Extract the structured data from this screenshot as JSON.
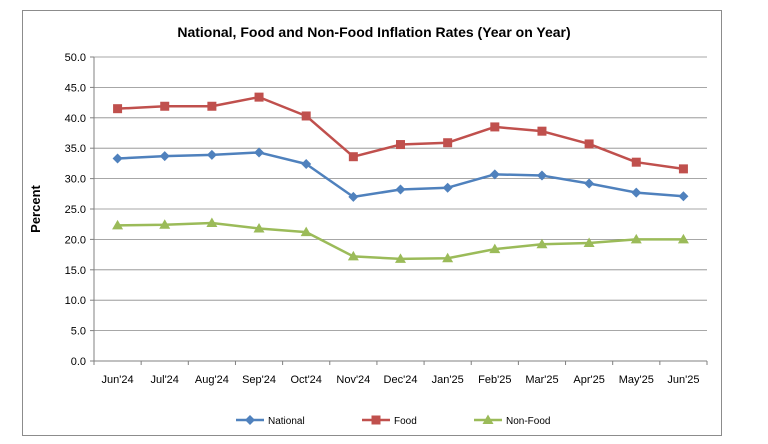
{
  "chart_data": {
    "type": "line",
    "title": "National, Food and Non-Food Inflation Rates (Year on Year)",
    "xlabel": "",
    "ylabel": "Percent",
    "ylim": [
      0,
      50
    ],
    "yticks": [
      "0.0",
      "5.0",
      "10.0",
      "15.0",
      "20.0",
      "25.0",
      "30.0",
      "35.0",
      "40.0",
      "45.0",
      "50.0"
    ],
    "categories": [
      "Jun'24",
      "Jul'24",
      "Aug'24",
      "Sep'24",
      "Oct'24",
      "Nov'24",
      "Dec'24",
      "Jan'25",
      "Feb'25",
      "Mar'25",
      "Apr'25",
      "May'25",
      "Jun'25"
    ],
    "series": [
      {
        "name": "National",
        "color": "#4f81bd",
        "marker": "diamond",
        "values": [
          33.3,
          33.7,
          33.9,
          34.3,
          32.4,
          27.0,
          28.2,
          28.5,
          30.7,
          30.5,
          29.2,
          27.7,
          27.1
        ]
      },
      {
        "name": "Food",
        "color": "#c0504d",
        "marker": "square",
        "values": [
          41.5,
          41.9,
          41.9,
          43.4,
          40.3,
          33.6,
          35.6,
          35.9,
          38.5,
          37.8,
          35.7,
          32.7,
          31.6
        ]
      },
      {
        "name": "Non-Food",
        "color": "#9bbb59",
        "marker": "triangle",
        "values": [
          22.3,
          22.4,
          22.7,
          21.8,
          21.2,
          17.2,
          16.8,
          16.9,
          18.4,
          19.2,
          19.4,
          20.0,
          20.0
        ]
      }
    ],
    "grid": true,
    "legend_position": "bottom"
  }
}
